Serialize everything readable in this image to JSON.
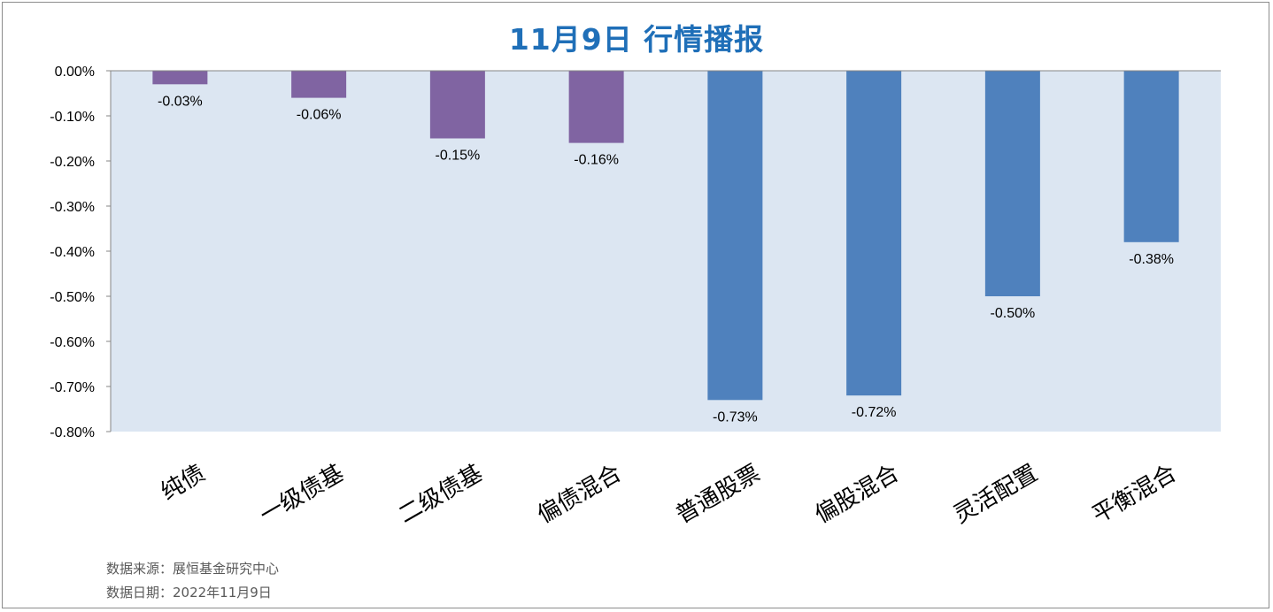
{
  "chart_data": {
    "type": "bar",
    "title": "11月9日  行情播报",
    "categories": [
      "纯债",
      "一级债基",
      "二级债基",
      "偏债混合",
      "普通股票",
      "偏股混合",
      "灵活配置",
      "平衡混合"
    ],
    "values": [
      -0.03,
      -0.06,
      -0.15,
      -0.16,
      -0.73,
      -0.72,
      -0.5,
      -0.38
    ],
    "data_labels": [
      "-0.03%",
      "-0.06%",
      "-0.15%",
      "-0.16%",
      "-0.73%",
      "-0.72%",
      "-0.50%",
      "-0.38%"
    ],
    "ylim": [
      -0.8,
      0.0
    ],
    "yticks": [
      0.0,
      -0.1,
      -0.2,
      -0.3,
      -0.4,
      -0.5,
      -0.6,
      -0.7,
      -0.8
    ],
    "ytick_labels": [
      "0.00%",
      "-0.10%",
      "-0.20%",
      "-0.30%",
      "-0.40%",
      "-0.50%",
      "-0.60%",
      "-0.70%",
      "-0.80%"
    ],
    "bar_colors": [
      "#8064a2",
      "#8064a2",
      "#8064a2",
      "#8064a2",
      "#4f81bd",
      "#4f81bd",
      "#4f81bd",
      "#4f81bd"
    ],
    "plot_background": "#dce6f2",
    "title_color": "#1f6fb8",
    "grid": false,
    "legend": "none"
  },
  "footer": {
    "source": "数据来源：展恒基金研究中心",
    "date": "数据日期：2022年11月9日"
  }
}
